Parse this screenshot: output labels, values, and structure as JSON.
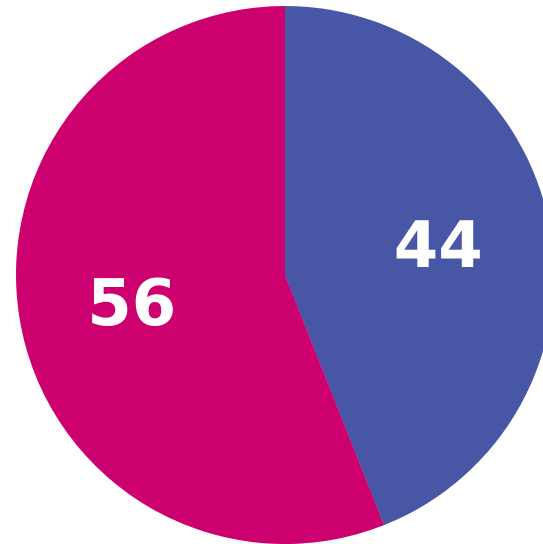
{
  "chart_data": {
    "type": "pie",
    "title": "",
    "start_angle": "12 o'clock",
    "direction": "clockwise",
    "slices": [
      {
        "label": "44",
        "value": 44,
        "color": "#4757A6"
      },
      {
        "label": "56",
        "value": 56,
        "color": "#CD0070"
      }
    ],
    "legend": "none"
  }
}
